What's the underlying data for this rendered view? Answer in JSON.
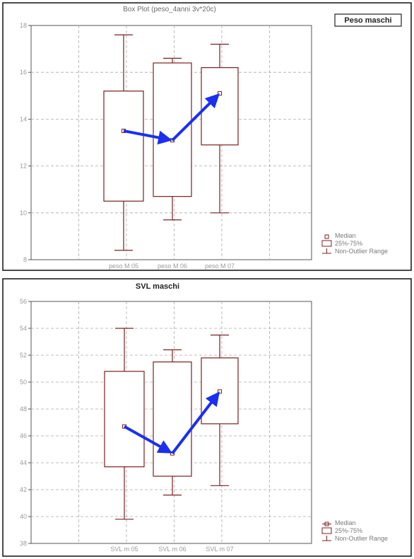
{
  "chart_data": [
    {
      "type": "box",
      "title": "Box Plot (peso_4anni 3v*20c)",
      "tag": "Peso maschi",
      "ylim": [
        8,
        18
      ],
      "yticks": [
        8,
        10,
        12,
        14,
        16,
        18
      ],
      "grid": true,
      "legend": [
        "Median",
        "25%-75%",
        "Non-Outlier Range"
      ],
      "legend_position": "bottom-right",
      "categories": [
        "peso M 05",
        "peso M 06",
        "peso M 07"
      ],
      "boxes": [
        {
          "whisker_low": 8.4,
          "q1": 10.5,
          "median": 13.5,
          "q3": 15.2,
          "whisker_high": 17.6
        },
        {
          "whisker_low": 9.7,
          "q1": 10.7,
          "median": 13.1,
          "q3": 16.4,
          "whisker_high": 16.6
        },
        {
          "whisker_low": 10.0,
          "q1": 12.9,
          "median": 15.1,
          "q3": 16.2,
          "whisker_high": 17.2
        }
      ]
    },
    {
      "type": "box",
      "title": "SVL maschi",
      "ylim": [
        38,
        56
      ],
      "yticks": [
        38,
        40,
        42,
        44,
        46,
        48,
        50,
        52,
        54,
        56
      ],
      "grid": true,
      "legend": [
        "Median",
        "25%-75%",
        "Non-Outlier Range"
      ],
      "legend_position": "bottom-right",
      "categories": [
        "SVL m 05",
        "SVL m 06",
        "SVL m 07"
      ],
      "boxes": [
        {
          "whisker_low": 39.8,
          "q1": 43.7,
          "median": 46.7,
          "q3": 50.8,
          "whisker_high": 54.0
        },
        {
          "whisker_low": 41.6,
          "q1": 43.0,
          "median": 44.7,
          "q3": 51.5,
          "whisker_high": 52.4
        },
        {
          "whisker_low": 42.3,
          "q1": 46.9,
          "median": 49.3,
          "q3": 51.8,
          "whisker_high": 53.5
        }
      ]
    }
  ]
}
